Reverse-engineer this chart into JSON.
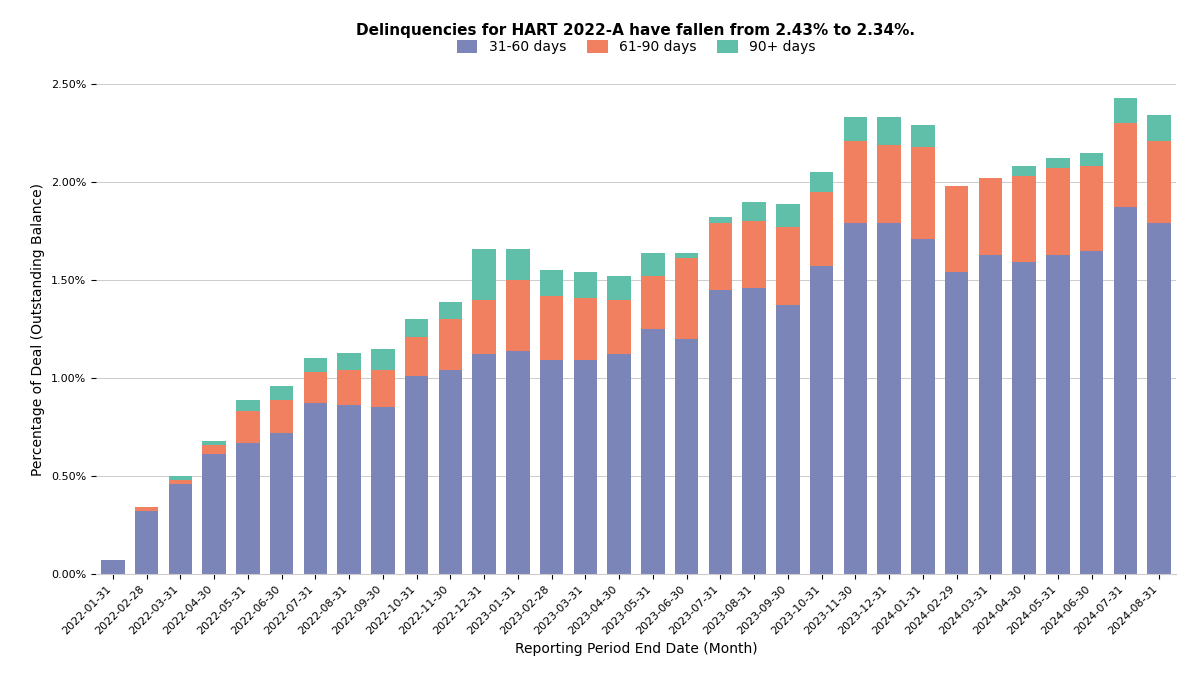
{
  "title": "Delinquencies for HART 2022-A have fallen from 2.43% to 2.34%.",
  "xlabel": "Reporting Period End Date (Month)",
  "ylabel": "Percentage of Deal (Outstanding Balance)",
  "categories": [
    "2022-01-31",
    "2022-02-28",
    "2022-03-31",
    "2022-04-30",
    "2022-05-31",
    "2022-06-30",
    "2022-07-31",
    "2022-08-31",
    "2022-09-30",
    "2022-10-31",
    "2022-11-30",
    "2022-12-31",
    "2023-01-31",
    "2023-02-28",
    "2023-03-31",
    "2023-04-30",
    "2023-05-31",
    "2023-06-30",
    "2023-07-31",
    "2023-08-31",
    "2023-09-30",
    "2023-10-31",
    "2023-11-30",
    "2023-12-31",
    "2024-01-31",
    "2024-02-29",
    "2024-03-31",
    "2024-04-30",
    "2024-05-31",
    "2024-06-30",
    "2024-07-31",
    "2024-08-31"
  ],
  "s1_pct": [
    0.07,
    0.32,
    0.46,
    0.61,
    0.67,
    0.72,
    0.87,
    0.86,
    0.85,
    1.01,
    1.04,
    1.12,
    1.14,
    1.09,
    1.09,
    1.12,
    1.25,
    1.2,
    1.45,
    1.46,
    1.37,
    1.57,
    1.79,
    1.79,
    1.71,
    1.54,
    1.63,
    1.59,
    1.63,
    1.65,
    1.87,
    1.79
  ],
  "s2_pct": [
    0.0,
    0.02,
    0.02,
    0.05,
    0.16,
    0.17,
    0.16,
    0.18,
    0.19,
    0.2,
    0.26,
    0.28,
    0.36,
    0.33,
    0.32,
    0.28,
    0.27,
    0.41,
    0.34,
    0.34,
    0.4,
    0.38,
    0.42,
    0.4,
    0.47,
    0.44,
    0.39,
    0.44,
    0.44,
    0.43,
    0.43,
    0.42
  ],
  "s3_pct": [
    0.0,
    0.0,
    0.02,
    0.02,
    0.06,
    0.07,
    0.07,
    0.09,
    0.11,
    0.09,
    0.09,
    0.26,
    0.16,
    0.13,
    0.13,
    0.12,
    0.12,
    0.03,
    0.03,
    0.1,
    0.12,
    0.1,
    0.12,
    0.14,
    0.11,
    0.0,
    0.0,
    0.05,
    0.05,
    0.07,
    0.13,
    0.13
  ],
  "color_s1": "#7b85b8",
  "color_s2": "#f08060",
  "color_s3": "#5fbfa8",
  "legend_labels": [
    "31-60 days",
    "61-90 days",
    "90+ days"
  ],
  "ylim_pct": [
    0.0,
    2.5
  ],
  "ytick_pct": [
    0.0,
    0.5,
    1.0,
    1.5,
    2.0,
    2.5
  ],
  "ytick_labels": [
    "0.00%",
    "0.50%",
    "1.00%",
    "1.50%",
    "2.00%",
    "2.50%"
  ],
  "bar_width": 0.7,
  "figsize": [
    12.0,
    7.0
  ],
  "dpi": 100,
  "bg_color": "#ffffff",
  "grid_color": "#cccccc",
  "title_fontsize": 11,
  "label_fontsize": 10,
  "tick_fontsize": 8,
  "legend_fontsize": 10
}
